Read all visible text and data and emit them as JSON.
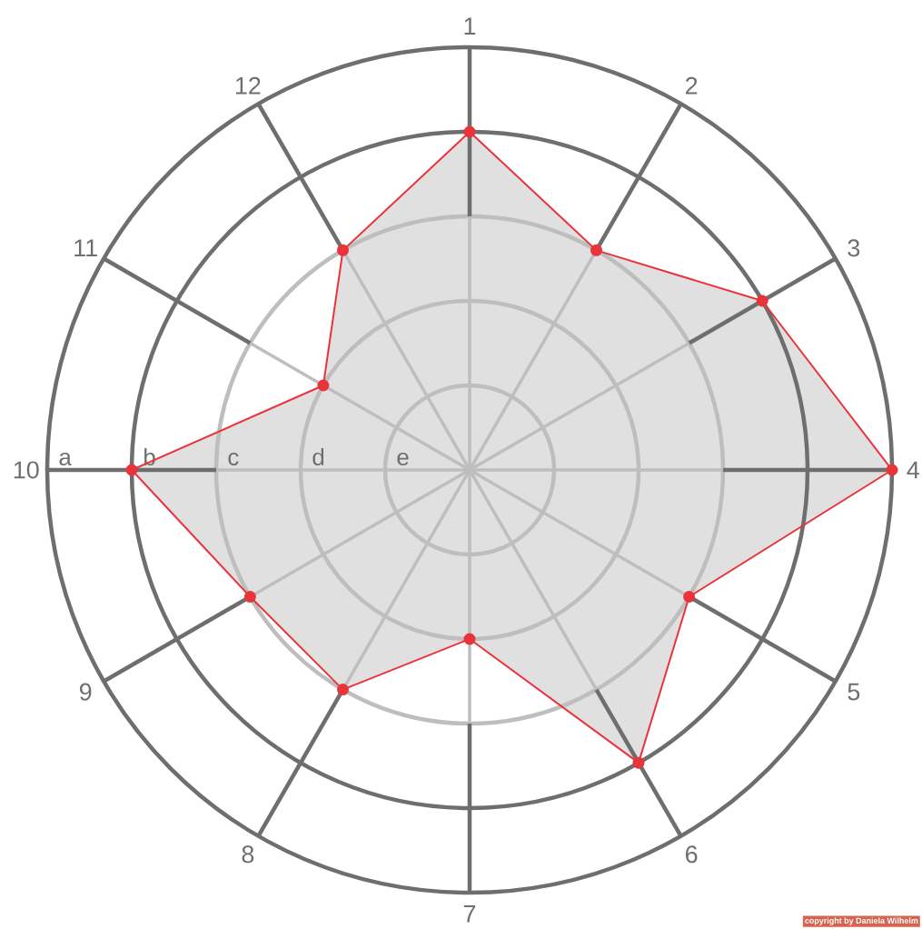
{
  "chart_data": {
    "type": "radar",
    "categories": [
      "1",
      "2",
      "3",
      "4",
      "5",
      "6",
      "7",
      "8",
      "9",
      "10",
      "11",
      "12"
    ],
    "ylim": [
      0,
      5
    ],
    "yticks": [
      {
        "value": 1,
        "label": "e"
      },
      {
        "value": 2,
        "label": "d"
      },
      {
        "value": 3,
        "label": "c"
      },
      {
        "value": 4,
        "label": "b"
      },
      {
        "value": 5,
        "label": "a"
      }
    ],
    "grid": true,
    "marker": "circle",
    "line_style": "solid",
    "series": [
      {
        "color": "#e8343a",
        "values": [
          4,
          3,
          4,
          5,
          3,
          4,
          2,
          3,
          3,
          4,
          2,
          3
        ]
      }
    ],
    "annotations": [
      "copyright by Daniela Wilhelm"
    ]
  }
}
